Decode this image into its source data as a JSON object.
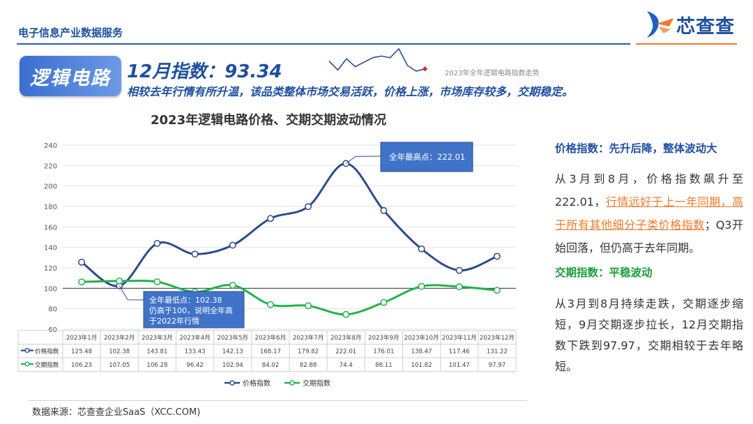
{
  "header": {
    "title": "电子信息产业数据服务",
    "logo_text": "芯查查"
  },
  "badge": {
    "label": "逻辑电路"
  },
  "index": {
    "title": "12月指数：93.34",
    "desc": "相较去年行情有所升温，该品类整体市场交易活跃，价格上涨，市场库存较多，交期稳定。",
    "spark_label": "2023年全年逻辑电路指数走势"
  },
  "chart_data": {
    "type": "line",
    "title": "2023年逻辑电路价格、交期交期波动情况",
    "categories": [
      "2023年1月",
      "2023年2月",
      "2023年3月",
      "2023年4月",
      "2023年5月",
      "2023年6月",
      "2023年7月",
      "2023年8月",
      "2023年9月",
      "2023年10月",
      "2023年11月",
      "2023年12月"
    ],
    "series": [
      {
        "name": "价格指数",
        "color": "#2b4c8c",
        "values": [
          125.48,
          102.38,
          143.81,
          133.43,
          142.13,
          168.17,
          179.82,
          222.01,
          176.01,
          138.47,
          117.46,
          131.22
        ],
        "labels": [
          "125.48",
          "102.38",
          "143.81",
          "133.43",
          "142.13",
          "168.17",
          "179.82",
          "222.01",
          "176.01",
          "138.47",
          "117.46",
          "131.22"
        ]
      },
      {
        "name": "交期指数",
        "color": "#22b14c",
        "values": [
          106.23,
          107.05,
          106.28,
          96.42,
          102.94,
          84.02,
          82.88,
          74.4,
          86.11,
          101.82,
          101.47,
          97.97
        ],
        "labels": [
          "106.23",
          "107.05",
          "106.28",
          "96.42",
          "102.94",
          "84.02",
          "82.88",
          "74.4",
          "86.11",
          "101.82",
          "101.47",
          "97.97"
        ]
      }
    ],
    "ylim": [
      60,
      240
    ],
    "yticks": [
      "60",
      "80",
      "100",
      "120",
      "140",
      "160",
      "180",
      "200",
      "220",
      "240"
    ],
    "baseline": 100,
    "annotations": {
      "max": {
        "lines": [
          "全年最高点：222.01"
        ]
      },
      "min": {
        "lines": [
          "全年最低点：102.38",
          "仍高于100，说明全年高",
          "于2022年行情"
        ]
      }
    }
  },
  "spark": {
    "values": [
      128,
      112,
      132,
      118,
      126,
      134,
      137,
      134,
      150,
      120,
      110,
      114
    ],
    "color": "#2b4c8c",
    "marker_color": "#e02020"
  },
  "side": {
    "h1": "价格指数：先升后降，整体波动大",
    "p1_pre": "从3月到8月，价格指数飙升至222.01，",
    "p1_hl": "行情远好于上一年同期，高于所有其他细分子类价格指数",
    "p1_post": "；Q3开始回落，但仍高于去年同期。",
    "h2": "交期指数：平稳波动",
    "p2": "从3月到8月持续走跌，交期逐步缩短，9月交期逐步拉长，12月交期指数下跌到97.97，交期相较于去年略短。"
  },
  "footer": {
    "source": "数据来源：芯查查企业SaaS（XCC.COM)"
  }
}
